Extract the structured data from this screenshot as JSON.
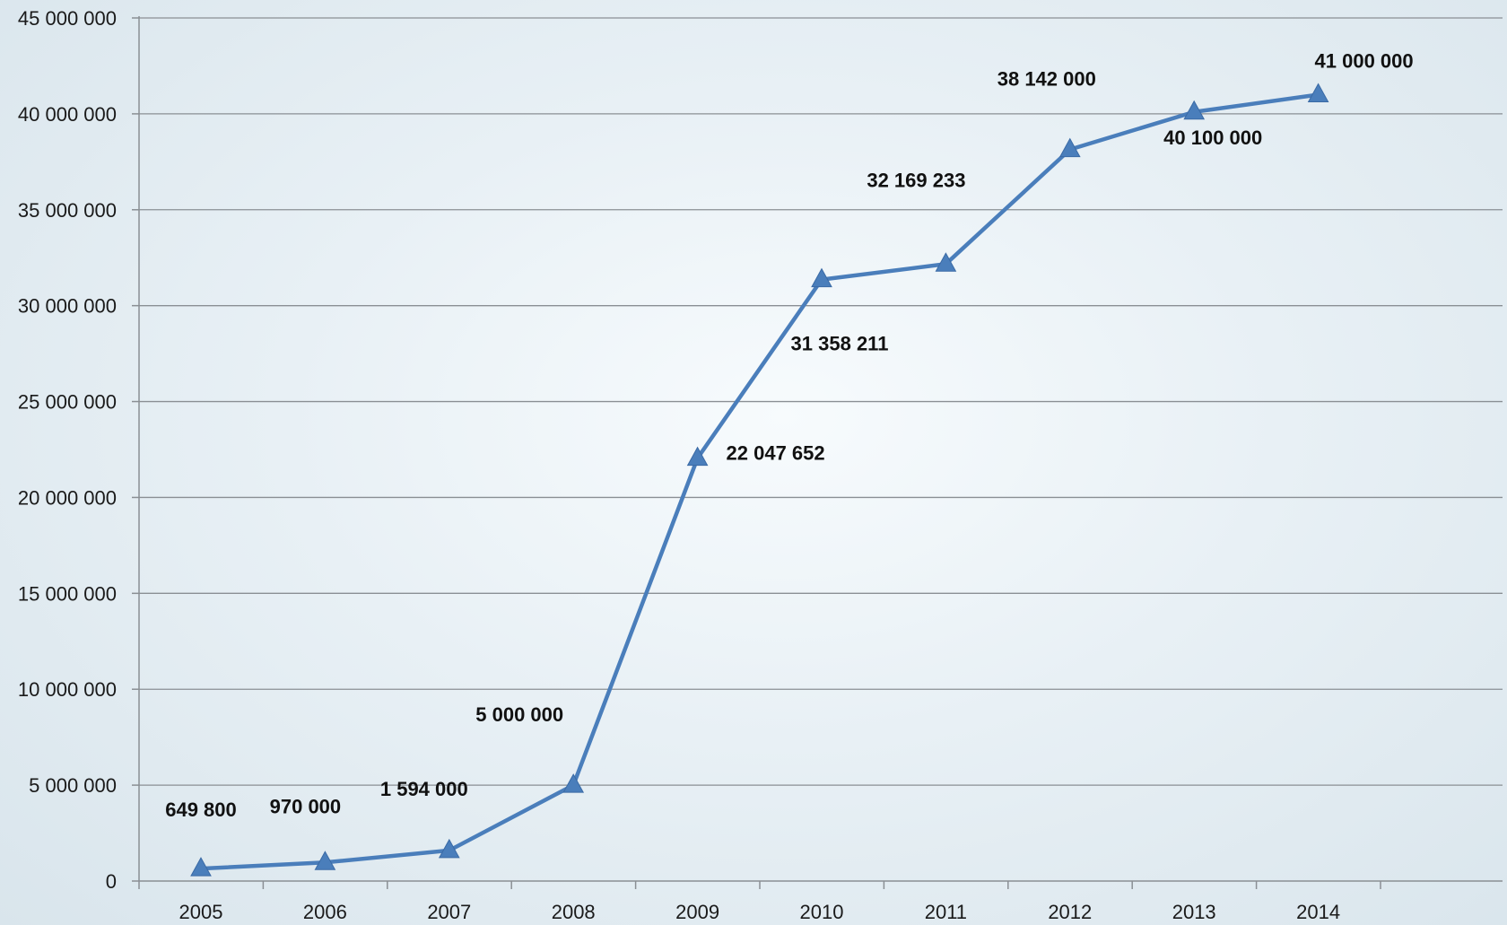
{
  "chart_data": {
    "type": "line",
    "title": "",
    "xlabel": "",
    "ylabel": "",
    "ylim": [
      0,
      45000000
    ],
    "y_ticks": [
      0,
      5000000,
      10000000,
      15000000,
      20000000,
      25000000,
      30000000,
      35000000,
      40000000,
      45000000
    ],
    "y_tick_labels": [
      "0",
      "5 000 000",
      "10 000 000",
      "15 000 000",
      "20 000 000",
      "25 000 000",
      "30 000 000",
      "35 000 000",
      "40 000 000",
      "45 000 000"
    ],
    "categories": [
      "2005",
      "2006",
      "2007",
      "2008",
      "2009",
      "2010",
      "2011",
      "2012",
      "2013",
      "2014"
    ],
    "grid": true,
    "legend": "none",
    "marker": "triangle",
    "series_color": "#4a7ebb",
    "series": [
      {
        "values": [
          649800,
          970000,
          1594000,
          5000000,
          22047652,
          31358211,
          32169233,
          38142000,
          40100000,
          41000000
        ],
        "labels": [
          "649 800",
          "970 000",
          "1 594 000",
          "5 000 000",
          "22 047 652",
          "31 358 211",
          "32 169 233",
          "38 142 000",
          "40 100 000",
          "41 000 000"
        ]
      }
    ]
  }
}
